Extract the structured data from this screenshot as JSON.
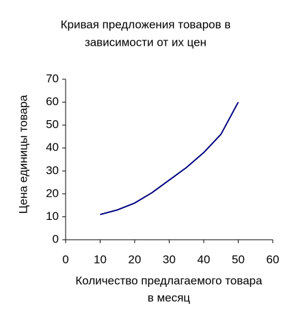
{
  "chart_data": {
    "type": "line",
    "title": [
      "Кривая предложения товаров в",
      "зависимости от их цен"
    ],
    "x_label": [
      "Количество предлагаемого товара",
      "в месяц"
    ],
    "y_label": "Цена единицы товара",
    "x": [
      10,
      15,
      20,
      25,
      30,
      35,
      40,
      45,
      50
    ],
    "series": [
      {
        "color": "#000080",
        "values": [
          11,
          13,
          16,
          20.5,
          26,
          31.5,
          38,
          46,
          60
        ]
      }
    ],
    "xlim": [
      0,
      60
    ],
    "xticks": [
      0,
      10,
      20,
      30,
      40,
      50,
      60
    ],
    "ylim": [
      0,
      70
    ],
    "yticks": [
      0,
      10,
      20,
      30,
      40,
      50,
      60,
      70
    ],
    "grid": false
  }
}
